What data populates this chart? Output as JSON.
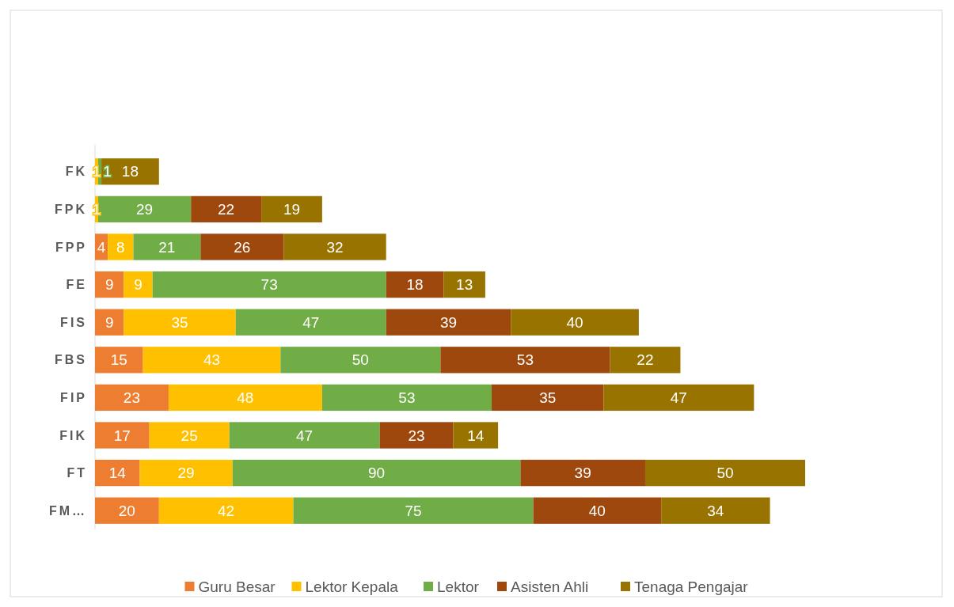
{
  "chart_data": {
    "type": "bar",
    "orientation": "horizontal",
    "stacked": true,
    "data_labels": true,
    "legend": "bottom",
    "categories": [
      "FK",
      "FPK",
      "FPP",
      "FE",
      "FIS",
      "FBS",
      "FIP",
      "FIK",
      "FT",
      "FM…"
    ],
    "series": [
      {
        "name": "Guru Besar",
        "color": "#ed7d31",
        "values": [
          null,
          null,
          4,
          9,
          9,
          15,
          23,
          17,
          14,
          20
        ]
      },
      {
        "name": "Lektor Kepala",
        "color": "#ffc000",
        "values": [
          1,
          1,
          8,
          9,
          35,
          43,
          48,
          25,
          29,
          42
        ]
      },
      {
        "name": "Lektor",
        "color": "#70ad47",
        "values": [
          1,
          29,
          21,
          73,
          47,
          50,
          53,
          47,
          90,
          75
        ]
      },
      {
        "name": "Asisten Ahli",
        "color": "#9e480e",
        "values": [
          null,
          22,
          26,
          18,
          39,
          53,
          35,
          23,
          39,
          40
        ]
      },
      {
        "name": "Tenaga Pengajar",
        "color": "#997300",
        "values": [
          18,
          19,
          32,
          13,
          40,
          22,
          47,
          14,
          50,
          34
        ]
      }
    ]
  }
}
